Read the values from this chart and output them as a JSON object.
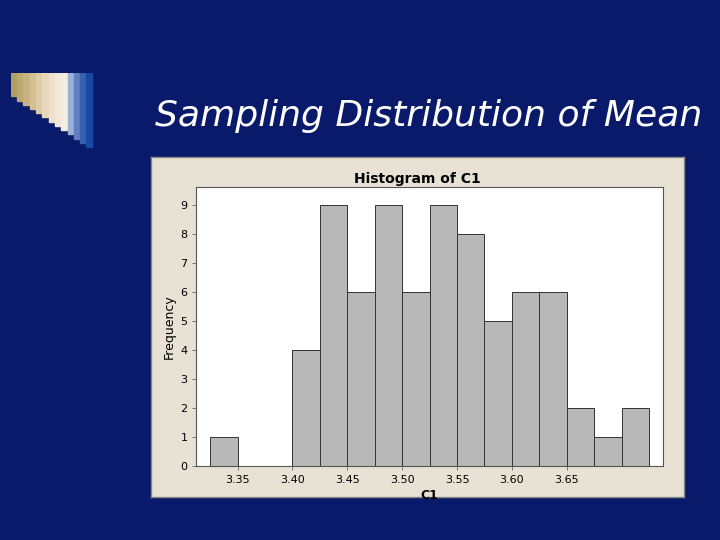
{
  "title": "Sampling Distribution of Mean",
  "hist_title": "Histogram of C1",
  "xlabel": "C1",
  "ylabel": "Frequency",
  "bins": [
    3.325,
    3.375,
    3.4,
    3.425,
    3.45,
    3.475,
    3.5,
    3.525,
    3.55,
    3.575,
    3.6,
    3.625,
    3.65,
    3.675,
    3.7,
    3.725
  ],
  "heights": [
    1,
    0,
    4,
    9,
    6,
    9,
    6,
    9,
    8,
    5,
    6,
    6,
    2,
    1,
    2
  ],
  "bar_width": 0.025,
  "bar_color": "#b8b8b8",
  "bar_edge_color": "#333333",
  "xticks": [
    3.35,
    3.4,
    3.45,
    3.5,
    3.55,
    3.6,
    3.65
  ],
  "yticks": [
    0,
    1,
    2,
    3,
    4,
    5,
    6,
    7,
    8,
    9
  ],
  "xlim": [
    3.3125,
    3.7375
  ],
  "ylim": [
    0,
    9.6
  ],
  "bg_slide": "#0a1a6b",
  "bg_outer_box": "#e8e2d5",
  "bg_inner_plot": "#ffffff",
  "title_color": "#ffffff",
  "title_fontsize": 26,
  "hist_title_fontsize": 10,
  "axis_label_fontsize": 9,
  "tick_fontsize": 8,
  "stripe_colors_light": [
    "#d0c8b0",
    "#d8d0bc",
    "#ddd8c8",
    "#e0ddd0",
    "#e5e2d8",
    "#eae8e0",
    "#efefeb",
    "#f0f0ec"
  ],
  "stripe_colors_blue": [
    "#a0b8e0",
    "#7090cc",
    "#5078c0",
    "#3060b8",
    "#2050a8",
    "#1848a0",
    "#1040a0",
    "#0838a0"
  ],
  "white_line_y": 0.085
}
